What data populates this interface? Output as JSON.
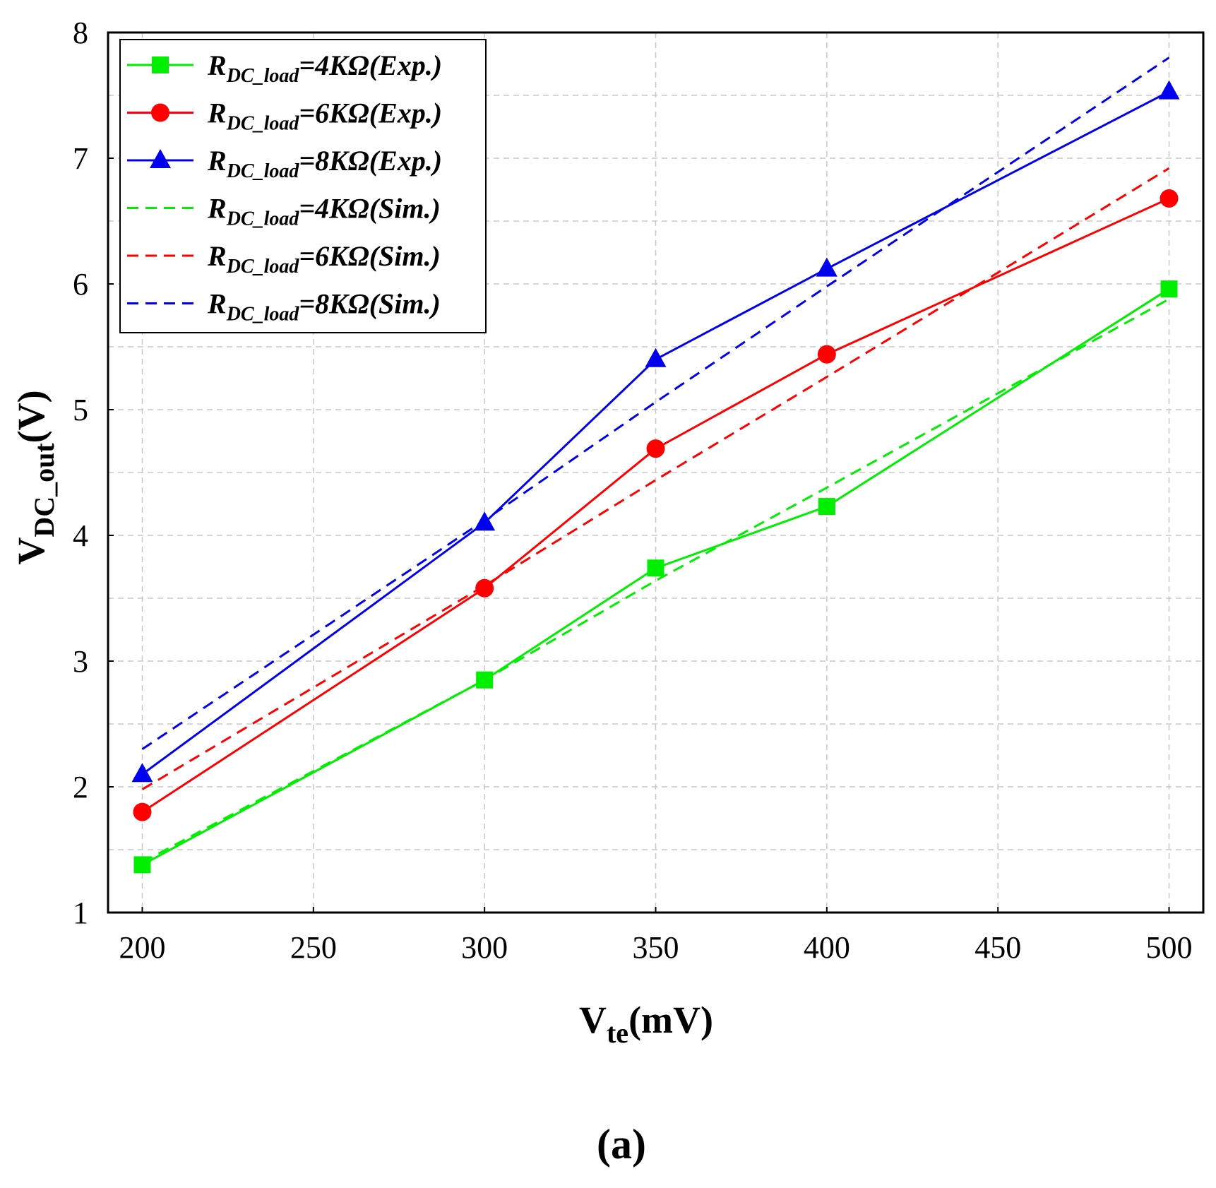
{
  "chart_data": {
    "type": "line",
    "title": "",
    "xlabel": {
      "main": "V",
      "sub": "te",
      "unit": "(mV)"
    },
    "ylabel": {
      "main": "V",
      "sub": "DC_out",
      "unit": "(V)"
    },
    "xlim": [
      190,
      510
    ],
    "ylim": [
      1,
      8
    ],
    "xticks": [
      200,
      250,
      300,
      350,
      400,
      450,
      500
    ],
    "yticks": [
      1,
      2,
      3,
      4,
      5,
      6,
      7,
      8
    ],
    "grid": true,
    "legend_position": "top-left",
    "panel_label": "(a)",
    "series": [
      {
        "name": "R_DC_load=4KΩ(Exp.)",
        "label_main": "R",
        "label_sub": "DC_load",
        "label_rest": "=4KΩ(Exp.)",
        "color": "#00ee00",
        "style": "solid",
        "marker": "square",
        "x": [
          200,
          300,
          350,
          400,
          500
        ],
        "y": [
          1.38,
          2.85,
          3.74,
          4.23,
          5.96
        ]
      },
      {
        "name": "R_DC_load=6KΩ(Exp.)",
        "label_main": "R",
        "label_sub": "DC_load",
        "label_rest": "=6KΩ(Exp.)",
        "color": "#ff0000",
        "style": "solid",
        "marker": "circle",
        "x": [
          200,
          300,
          350,
          400,
          500
        ],
        "y": [
          1.8,
          3.58,
          4.69,
          5.44,
          6.68
        ]
      },
      {
        "name": "R_DC_load=8KΩ(Exp.)",
        "label_main": "R",
        "label_sub": "DC_load",
        "label_rest": "=8KΩ(Exp.)",
        "color": "#0000ee",
        "style": "solid",
        "marker": "triangle",
        "x": [
          200,
          300,
          350,
          400,
          500
        ],
        "y": [
          2.1,
          4.1,
          5.4,
          6.12,
          7.53
        ]
      },
      {
        "name": "R_DC_load=4KΩ(Sim.)",
        "label_main": "R",
        "label_sub": "DC_load",
        "label_rest": "=4KΩ(Sim.)",
        "color": "#00ee00",
        "style": "dashed",
        "marker": "none",
        "x": [
          200,
          300,
          350,
          400,
          500
        ],
        "y": [
          1.4,
          2.85,
          3.64,
          4.38,
          5.88
        ]
      },
      {
        "name": "R_DC_load=6KΩ(Sim.)",
        "label_main": "R",
        "label_sub": "DC_load",
        "label_rest": "=6KΩ(Sim.)",
        "color": "#ff0000",
        "style": "dashed",
        "marker": "none",
        "x": [
          200,
          300,
          350,
          400,
          500
        ],
        "y": [
          1.98,
          3.6,
          4.44,
          5.26,
          6.92
        ]
      },
      {
        "name": "R_DC_load=8KΩ(Sim.)",
        "label_main": "R",
        "label_sub": "DC_load",
        "label_rest": "=8KΩ(Sim.)",
        "color": "#0000ee",
        "style": "dashed",
        "marker": "none",
        "x": [
          200,
          300,
          350,
          400,
          500
        ],
        "y": [
          2.3,
          4.12,
          5.06,
          5.98,
          7.8
        ]
      }
    ]
  }
}
